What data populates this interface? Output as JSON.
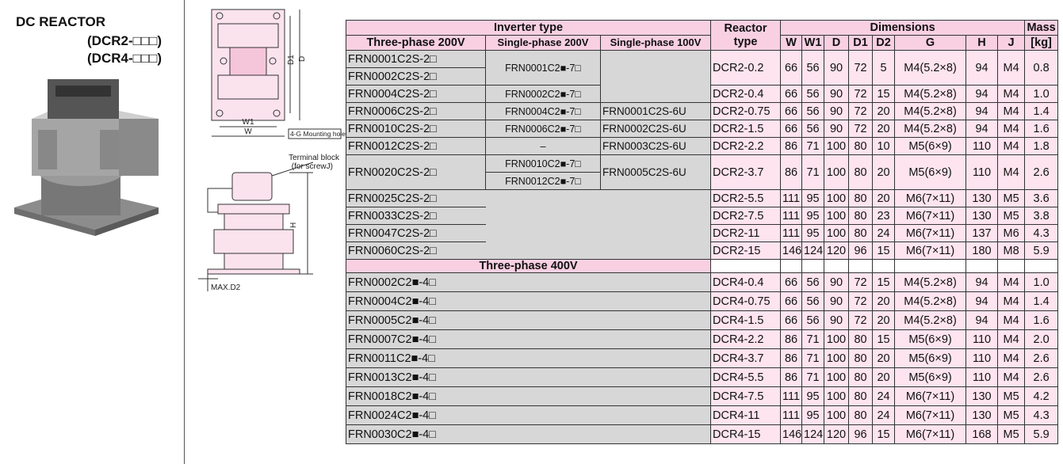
{
  "title": {
    "line1": "DC REACTOR",
    "line2": "(DCR2-□□□)",
    "line3": "(DCR4-□□□)"
  },
  "diagram": {
    "d1": "D1",
    "d": "D",
    "w1": "W1",
    "w": "W",
    "mounting_hole": "4-G Mounting hole",
    "terminal_block": "Terminal block",
    "terminal_screw": "(for screwJ)",
    "h": "H",
    "max_d2": "MAX.D2"
  },
  "table": {
    "header": {
      "inverter_type": "Inverter type",
      "reactor_type": "Reactor type",
      "dimensions": "Dimensions",
      "mass": "Mass",
      "mass_unit": "[kg]",
      "columns": [
        "Three-phase 200V",
        "Single-phase 200V",
        "Single-phase 100V",
        "W",
        "W1",
        "D",
        "D1",
        "D2",
        "G",
        "H",
        "J"
      ]
    },
    "rows_200v": [
      {
        "three_phase": [
          "FRN0001C2S-2□",
          "FRN0002C2S-2□"
        ],
        "single_200": [
          "FRN0001C2■-7□"
        ],
        "reactor": "DCR2-0.2",
        "dims": [
          "66",
          "56",
          "90",
          "72",
          "5",
          "M4(5.2×8)",
          "94",
          "M4"
        ],
        "mass": "0.8"
      },
      {
        "three_phase": [
          "FRN0004C2S-2□"
        ],
        "single_200": [
          "FRN0002C2■-7□"
        ],
        "reactor": "DCR2-0.4",
        "dims": [
          "66",
          "56",
          "90",
          "72",
          "15",
          "M4(5.2×8)",
          "94",
          "M4"
        ],
        "mass": "1.0"
      },
      {
        "three_phase": [
          "FRN0006C2S-2□"
        ],
        "single_200": [
          "FRN0004C2■-7□"
        ],
        "single_100": [
          "FRN0001C2S-6U"
        ],
        "reactor": "DCR2-0.75",
        "dims": [
          "66",
          "56",
          "90",
          "72",
          "20",
          "M4(5.2×8)",
          "94",
          "M4"
        ],
        "mass": "1.4"
      },
      {
        "three_phase": [
          "FRN0010C2S-2□"
        ],
        "single_200": [
          "FRN0006C2■-7□"
        ],
        "single_100": [
          "FRN0002C2S-6U"
        ],
        "reactor": "DCR2-1.5",
        "dims": [
          "66",
          "56",
          "90",
          "72",
          "20",
          "M4(5.2×8)",
          "94",
          "M4"
        ],
        "mass": "1.6"
      },
      {
        "three_phase": [
          "FRN0012C2S-2□"
        ],
        "single_200": [
          "–"
        ],
        "single_100": [
          "FRN0003C2S-6U"
        ],
        "reactor": "DCR2-2.2",
        "dims": [
          "86",
          "71",
          "100",
          "80",
          "10",
          "M5(6×9)",
          "110",
          "M4"
        ],
        "mass": "1.8"
      },
      {
        "three_phase": [
          "FRN0020C2S-2□"
        ],
        "single_200": [
          "FRN0010C2■-7□",
          "FRN0012C2■-7□"
        ],
        "single_100": [
          "FRN0005C2S-6U"
        ],
        "reactor": "DCR2-3.7",
        "dims": [
          "86",
          "71",
          "100",
          "80",
          "20",
          "M5(6×9)",
          "110",
          "M4"
        ],
        "mass": "2.6"
      },
      {
        "three_phase": [
          "FRN0025C2S-2□"
        ],
        "reactor": "DCR2-5.5",
        "dims": [
          "111",
          "95",
          "100",
          "80",
          "20",
          "M6(7×11)",
          "130",
          "M5"
        ],
        "mass": "3.6"
      },
      {
        "three_phase": [
          "FRN0033C2S-2□"
        ],
        "reactor": "DCR2-7.5",
        "dims": [
          "111",
          "95",
          "100",
          "80",
          "23",
          "M6(7×11)",
          "130",
          "M5"
        ],
        "mass": "3.8"
      },
      {
        "three_phase": [
          "FRN0047C2S-2□"
        ],
        "reactor": "DCR2-11",
        "dims": [
          "111",
          "95",
          "100",
          "80",
          "24",
          "M6(7×11)",
          "137",
          "M6"
        ],
        "mass": "4.3"
      },
      {
        "three_phase": [
          "FRN0060C2S-2□"
        ],
        "reactor": "DCR2-15",
        "dims": [
          "146",
          "124",
          "120",
          "96",
          "15",
          "M6(7×11)",
          "180",
          "M8"
        ],
        "mass": "5.9"
      }
    ],
    "section_400v": "Three-phase 400V",
    "rows_400v": [
      {
        "inverter": "FRN0002C2■-4□",
        "reactor": "DCR4-0.4",
        "dims": [
          "66",
          "56",
          "90",
          "72",
          "15",
          "M4(5.2×8)",
          "94",
          "M4"
        ],
        "mass": "1.0"
      },
      {
        "inverter": "FRN0004C2■-4□",
        "reactor": "DCR4-0.75",
        "dims": [
          "66",
          "56",
          "90",
          "72",
          "20",
          "M4(5.2×8)",
          "94",
          "M4"
        ],
        "mass": "1.4"
      },
      {
        "inverter": "FRN0005C2■-4□",
        "reactor": "DCR4-1.5",
        "dims": [
          "66",
          "56",
          "90",
          "72",
          "20",
          "M4(5.2×8)",
          "94",
          "M4"
        ],
        "mass": "1.6"
      },
      {
        "inverter": "FRN0007C2■-4□",
        "reactor": "DCR4-2.2",
        "dims": [
          "86",
          "71",
          "100",
          "80",
          "15",
          "M5(6×9)",
          "110",
          "M4"
        ],
        "mass": "2.0"
      },
      {
        "inverter": "FRN0011C2■-4□",
        "reactor": "DCR4-3.7",
        "dims": [
          "86",
          "71",
          "100",
          "80",
          "20",
          "M5(6×9)",
          "110",
          "M4"
        ],
        "mass": "2.6"
      },
      {
        "inverter": "FRN0013C2■-4□",
        "reactor": "DCR4-5.5",
        "dims": [
          "86",
          "71",
          "100",
          "80",
          "20",
          "M5(6×9)",
          "110",
          "M4"
        ],
        "mass": "2.6"
      },
      {
        "inverter": "FRN0018C2■-4□",
        "reactor": "DCR4-7.5",
        "dims": [
          "111",
          "95",
          "100",
          "80",
          "24",
          "M6(7×11)",
          "130",
          "M5"
        ],
        "mass": "4.2"
      },
      {
        "inverter": "FRN0024C2■-4□",
        "reactor": "DCR4-11",
        "dims": [
          "111",
          "95",
          "100",
          "80",
          "24",
          "M6(7×11)",
          "130",
          "M5"
        ],
        "mass": "4.3"
      },
      {
        "inverter": "FRN0030C2■-4□",
        "reactor": "DCR4-15",
        "dims": [
          "146",
          "124",
          "120",
          "96",
          "15",
          "M6(7×11)",
          "168",
          "M5"
        ],
        "mass": "5.9"
      }
    ]
  }
}
